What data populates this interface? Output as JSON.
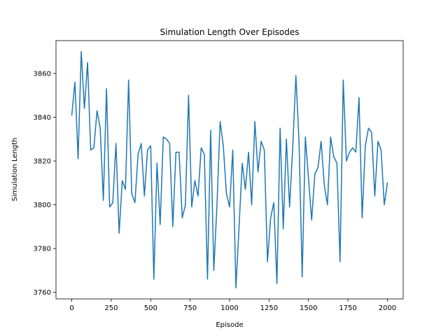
{
  "chart_data": {
    "type": "line",
    "title": "Simulation Length Over Episodes",
    "xlabel": "Episode",
    "ylabel": "Simulation Length",
    "xlim": [
      -100,
      2100
    ],
    "ylim": [
      3757,
      3875
    ],
    "xticks": [
      0,
      250,
      500,
      750,
      1000,
      1250,
      1500,
      1750,
      2000
    ],
    "yticks": [
      3760,
      3780,
      3800,
      3820,
      3840,
      3860
    ],
    "grid": false,
    "legend": "none",
    "color": "#1f77b4",
    "series": [
      {
        "x": [
          0,
          20,
          40,
          60,
          80,
          100,
          120,
          140,
          160,
          180,
          200,
          220,
          240,
          260,
          280,
          300,
          320,
          340,
          360,
          380,
          400,
          420,
          440,
          460,
          480,
          500,
          520,
          540,
          560,
          580,
          600,
          620,
          640,
          660,
          680,
          700,
          720,
          740,
          760,
          780,
          800,
          820,
          840,
          860,
          880,
          900,
          920,
          940,
          960,
          980,
          1000,
          1020,
          1040,
          1060,
          1080,
          1100,
          1120,
          1140,
          1160,
          1180,
          1200,
          1220,
          1240,
          1260,
          1280,
          1300,
          1320,
          1340,
          1360,
          1380,
          1400,
          1420,
          1440,
          1460,
          1480,
          1500,
          1520,
          1540,
          1560,
          1580,
          1600,
          1620,
          1640,
          1660,
          1680,
          1700,
          1720,
          1740,
          1760,
          1780,
          1800,
          1820,
          1840,
          1860,
          1880,
          1900,
          1920,
          1940,
          1960,
          1980,
          2000
        ],
        "values": [
          3841,
          3856,
          3821,
          3870,
          3844,
          3865,
          3825,
          3826,
          3843,
          3835,
          3802,
          3853,
          3799,
          3801,
          3828,
          3787,
          3811,
          3807,
          3857,
          3805,
          3801,
          3823,
          3828,
          3804,
          3825,
          3827,
          3766,
          3819,
          3791,
          3831,
          3830,
          3828,
          3790,
          3824,
          3824,
          3794,
          3800,
          3850,
          3799,
          3811,
          3804,
          3826,
          3823,
          3766,
          3834,
          3770,
          3800,
          3838,
          3827,
          3805,
          3799,
          3825,
          3762,
          3790,
          3819,
          3807,
          3824,
          3800,
          3838,
          3815,
          3829,
          3825,
          3774,
          3794,
          3801,
          3764,
          3835,
          3789,
          3830,
          3799,
          3826,
          3859,
          3829,
          3767,
          3831,
          3812,
          3793,
          3814,
          3817,
          3829,
          3809,
          3800,
          3831,
          3822,
          3819,
          3774,
          3857,
          3820,
          3824,
          3826,
          3824,
          3849,
          3794,
          3827,
          3835,
          3833,
          3804,
          3829,
          3825,
          3800,
          3810
        ]
      }
    ]
  }
}
